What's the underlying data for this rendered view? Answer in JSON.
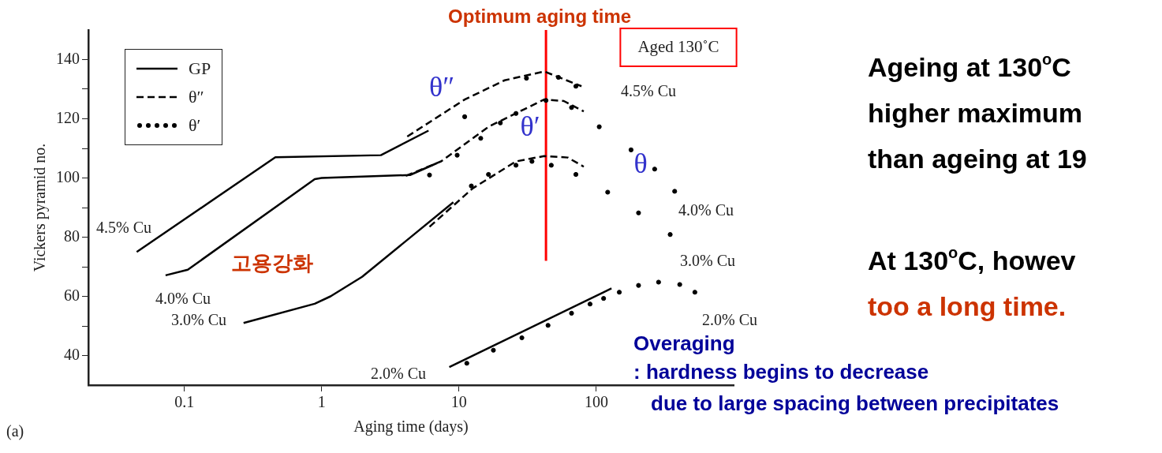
{
  "chart_data": {
    "type": "line",
    "xlabel": "Aging time (days)",
    "ylabel": "Vickers pyramid no.",
    "log": "x",
    "xlim": [
      0.02,
      1000
    ],
    "xticks": [
      0.1,
      1,
      10,
      100
    ],
    "ylim": [
      30,
      150
    ],
    "yticks": [
      {
        "value": 40,
        "label": "40"
      },
      {
        "value": 50,
        "label": null
      },
      {
        "value": 60,
        "label": "60"
      },
      {
        "value": 70,
        "label": null
      },
      {
        "value": 80,
        "label": "80"
      },
      {
        "value": 90,
        "label": null
      },
      {
        "value": 100,
        "label": "100"
      },
      {
        "value": 110,
        "label": null
      },
      {
        "value": 120,
        "label": "120"
      },
      {
        "value": 130,
        "label": null
      },
      {
        "value": 140,
        "label": "140"
      }
    ],
    "legend": "top left",
    "series": [
      {
        "name": "GP",
        "type": "line",
        "line_style": "solid",
        "marker": "none",
        "color": "#000000",
        "x": [
          0.045,
          0.46,
          2.7,
          6.0
        ],
        "values": [
          75,
          107,
          107.7,
          116
        ]
      },
      {
        "name": "θ″",
        "type": "line",
        "line_style": "dashed",
        "marker": "none",
        "color": "#000000",
        "x": [
          4.2,
          11,
          21.5,
          41.7,
          78
        ],
        "values": [
          114,
          126.5,
          133,
          136,
          131
        ]
      },
      {
        "name": "θ′",
        "type": "scatter",
        "marker": "circle",
        "color": "#000000",
        "x": [
          11,
          31,
          53,
          71
        ],
        "values": [
          120.7,
          133.7,
          134,
          131
        ]
      },
      {
        "type": "line",
        "line_style": "solid",
        "marker": "none",
        "color": "#000000",
        "x": [
          0.073,
          0.106,
          0.89,
          1.0,
          4.4,
          6.9
        ],
        "values": [
          67.1,
          69,
          99.6,
          100,
          101,
          105
        ]
      },
      {
        "type": "line",
        "line_style": "dashed",
        "marker": "none",
        "color": "#000000",
        "x": [
          4.1,
          7.4,
          16.4,
          41.7,
          58,
          81
        ],
        "values": [
          100.7,
          105.6,
          117.3,
          126.5,
          126,
          122.5
        ]
      },
      {
        "type": "scatter",
        "marker": "circle",
        "color": "#000000",
        "x": [
          6.1,
          9.7,
          14.4,
          20,
          26,
          43,
          66,
          105,
          179,
          266,
          372
        ],
        "values": [
          101,
          107.7,
          113.4,
          118.6,
          121.8,
          126.2,
          123.8,
          117.3,
          109.5,
          103,
          95.5
        ]
      },
      {
        "type": "line",
        "line_style": "solid",
        "marker": "none",
        "color": "#000000",
        "x": [
          0.27,
          0.89,
          1.16,
          1.97,
          9.1
        ],
        "values": [
          51,
          57.5,
          60,
          66.6,
          91.8
        ]
      },
      {
        "type": "line",
        "line_style": "dashed",
        "marker": "none",
        "color": "#000000",
        "x": [
          6.1,
          12.6,
          26,
          41.7,
          62,
          81
        ],
        "values": [
          83.5,
          96.5,
          105.6,
          107.4,
          106.9,
          103.8
        ]
      },
      {
        "type": "scatter",
        "marker": "circle",
        "color": "#000000",
        "x": [
          12.3,
          16.4,
          26,
          34,
          47,
          71,
          121,
          203,
          345
        ],
        "values": [
          97.3,
          101.2,
          104.3,
          105.6,
          104.3,
          101.2,
          95.2,
          88.2,
          80.9
        ]
      },
      {
        "type": "line",
        "line_style": "solid",
        "marker": "none",
        "color": "#000000",
        "x": [
          8.5,
          129
        ],
        "values": [
          36.1,
          62.7
        ]
      },
      {
        "type": "scatter",
        "marker": "circle",
        "color": "#000000",
        "x": [
          11.4,
          17.8,
          28.7,
          44.5,
          66,
          90,
          113,
          147,
          203,
          284,
          405,
          522
        ],
        "values": [
          37.4,
          41.8,
          46,
          50.2,
          54.3,
          57.4,
          59.3,
          61.4,
          63.7,
          64.8,
          64,
          61.4
        ]
      }
    ],
    "ref_lines": [
      {
        "axis": "x",
        "value": 43,
        "label": "Optimum aging time",
        "color": "#ff0000"
      }
    ],
    "annotations": [
      "4.5% Cu",
      "4.0% Cu",
      "3.0% Cu",
      "2.0% Cu",
      "4.5% Cu",
      "4.0% Cu",
      "3.0% Cu",
      "2.0% Cu",
      "고용강화",
      "θ″",
      "θ′",
      "θ",
      "Aged 130˚C",
      "(a)",
      "Overaging",
      ": hardness begins to decrease",
      "due to large spacing between precipitates",
      "Ageing at 130$^{o}$C",
      "higher maximum",
      "than ageing at 19",
      "At 130$^{o}$C, howev",
      "too a long time."
    ]
  }
}
